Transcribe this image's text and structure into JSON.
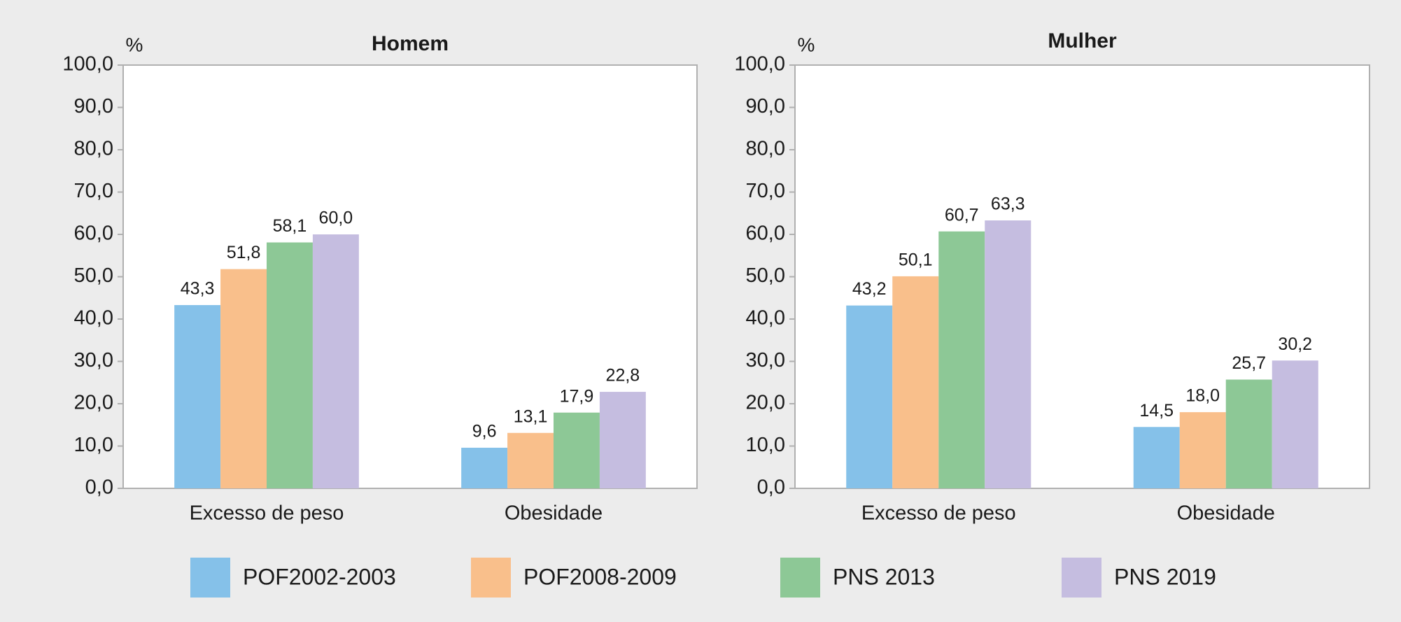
{
  "chart_data": [
    {
      "type": "bar",
      "title": "Homem",
      "ylabel": "%",
      "categories": [
        "Excesso de peso",
        "Obesidade"
      ],
      "ylim": [
        0,
        100
      ],
      "yticks": [
        {
          "value": 0,
          "label": "0,0"
        },
        {
          "value": 10,
          "label": "10,0"
        },
        {
          "value": 20,
          "label": "20,0"
        },
        {
          "value": 30,
          "label": "30,0"
        },
        {
          "value": 40,
          "label": "40,0"
        },
        {
          "value": 50,
          "label": "50,0"
        },
        {
          "value": 60,
          "label": "60,0"
        },
        {
          "value": 70,
          "label": "70,0"
        },
        {
          "value": 80,
          "label": "80,0"
        },
        {
          "value": 90,
          "label": "90,0"
        },
        {
          "value": 100,
          "label": "100,0"
        }
      ],
      "series": [
        {
          "values": [
            43.3,
            9.6
          ],
          "value_labels": [
            "43,3",
            "9,6"
          ]
        },
        {
          "values": [
            51.8,
            13.1
          ],
          "value_labels": [
            "51,8",
            "13,1"
          ]
        },
        {
          "values": [
            58.1,
            17.9
          ],
          "value_labels": [
            "58,1",
            "17,9"
          ]
        },
        {
          "values": [
            60.0,
            22.8
          ],
          "value_labels": [
            "60,0",
            "22,8"
          ]
        }
      ]
    },
    {
      "type": "bar",
      "title": "Mulher",
      "ylabel": "%",
      "categories": [
        "Excesso de peso",
        "Obesidade"
      ],
      "ylim": [
        0,
        100
      ],
      "yticks": [
        {
          "value": 0,
          "label": "0,0"
        },
        {
          "value": 10,
          "label": "10,0"
        },
        {
          "value": 20,
          "label": "20,0"
        },
        {
          "value": 30,
          "label": "30,0"
        },
        {
          "value": 40,
          "label": "40,0"
        },
        {
          "value": 50,
          "label": "50,0"
        },
        {
          "value": 60,
          "label": "60,0"
        },
        {
          "value": 70,
          "label": "70,0"
        },
        {
          "value": 80,
          "label": "80,0"
        },
        {
          "value": 90,
          "label": "90,0"
        },
        {
          "value": 100,
          "label": "100,0"
        }
      ],
      "series": [
        {
          "values": [
            43.2,
            14.5
          ],
          "value_labels": [
            "43,2",
            "14,5"
          ]
        },
        {
          "values": [
            50.1,
            18.0
          ],
          "value_labels": [
            "50,1",
            "18,0"
          ]
        },
        {
          "values": [
            60.7,
            25.7
          ],
          "value_labels": [
            "60,7",
            "25,7"
          ]
        },
        {
          "values": [
            63.3,
            30.2
          ],
          "value_labels": [
            "63,3",
            "30,2"
          ]
        }
      ]
    }
  ],
  "legend": [
    {
      "name": "POF2002-2003",
      "color": "#85c1e9"
    },
    {
      "name": "POF2008-2009",
      "color": "#f9bf8b"
    },
    {
      "name": "PNS 2013",
      "color": "#8dc896"
    },
    {
      "name": "PNS 2019",
      "color": "#c5bde0"
    }
  ]
}
